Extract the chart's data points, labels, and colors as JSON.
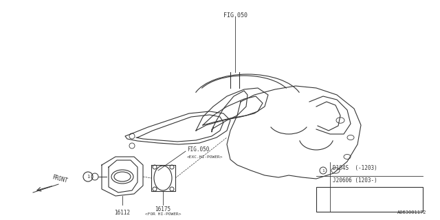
{
  "title": "",
  "background_color": "#ffffff",
  "line_color": "#333333",
  "text_color": "#333333",
  "fig_width": 6.4,
  "fig_height": 3.2,
  "dpi": 100,
  "labels": {
    "fig050_top": "FIG.050",
    "fig050_mid": "FIG.050",
    "fig050_mid_sub": "<EXC.HI-POWER>",
    "part16112": "16112",
    "part16175": "16175",
    "part16175_sub": "<FOR HI-POWER>",
    "front": "FRONT",
    "diagram_id": "A063001172",
    "table_row1": "D104S  (-1203)",
    "table_row2": "J20606 (1203-)",
    "table_circle": "1"
  }
}
